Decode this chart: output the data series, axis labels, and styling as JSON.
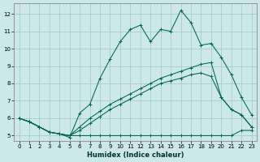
{
  "xlabel": "Humidex (Indice chaleur)",
  "bg_color": "#cce8e8",
  "grid_color": "#aacccc",
  "line_color": "#006655",
  "xlim": [
    -0.5,
    23.5
  ],
  "ylim": [
    4.7,
    12.6
  ],
  "yticks": [
    5,
    6,
    7,
    8,
    9,
    10,
    11,
    12
  ],
  "xticks": [
    0,
    1,
    2,
    3,
    4,
    5,
    6,
    7,
    8,
    9,
    10,
    11,
    12,
    13,
    14,
    15,
    16,
    17,
    18,
    19,
    20,
    21,
    22,
    23
  ],
  "line1_x": [
    0,
    1,
    2,
    3,
    4,
    5,
    6,
    7,
    8,
    9,
    10,
    11,
    12,
    13,
    14,
    15,
    16,
    17,
    18,
    19,
    20,
    21,
    22,
    23
  ],
  "line1_y": [
    6.0,
    5.8,
    5.5,
    5.2,
    5.1,
    4.9,
    6.3,
    6.8,
    8.3,
    9.4,
    10.4,
    11.1,
    11.35,
    10.4,
    11.1,
    11.0,
    12.2,
    11.5,
    10.2,
    10.3,
    9.5,
    8.5,
    7.2,
    6.2
  ],
  "line2_x": [
    0,
    1,
    2,
    3,
    4,
    5,
    6,
    7,
    8,
    9,
    10,
    11,
    12,
    13,
    14,
    15,
    16,
    17,
    18,
    19,
    20,
    21,
    22,
    23
  ],
  "line2_y": [
    6.0,
    5.8,
    5.5,
    5.2,
    5.1,
    5.0,
    5.0,
    5.0,
    5.0,
    5.0,
    5.0,
    5.0,
    5.0,
    5.0,
    5.0,
    5.0,
    5.0,
    5.0,
    5.0,
    5.0,
    5.0,
    5.0,
    5.3,
    5.3
  ],
  "line3_x": [
    0,
    1,
    2,
    3,
    4,
    5,
    6,
    7,
    8,
    9,
    10,
    11,
    12,
    13,
    14,
    15,
    16,
    17,
    18,
    19,
    20,
    21,
    22,
    23
  ],
  "line3_y": [
    6.0,
    5.8,
    5.5,
    5.2,
    5.1,
    5.0,
    5.3,
    5.7,
    6.1,
    6.5,
    6.8,
    7.1,
    7.4,
    7.7,
    8.0,
    8.15,
    8.3,
    8.5,
    8.6,
    8.4,
    7.2,
    6.5,
    6.2,
    5.5
  ],
  "line4_x": [
    0,
    1,
    2,
    3,
    4,
    5,
    6,
    7,
    8,
    9,
    10,
    11,
    12,
    13,
    14,
    15,
    16,
    17,
    18,
    19,
    20,
    21,
    22,
    23
  ],
  "line4_y": [
    6.0,
    5.8,
    5.5,
    5.2,
    5.1,
    5.0,
    5.5,
    6.0,
    6.4,
    6.8,
    7.1,
    7.4,
    7.7,
    8.0,
    8.3,
    8.5,
    8.7,
    8.9,
    9.1,
    9.2,
    7.2,
    6.5,
    6.2,
    5.5
  ]
}
